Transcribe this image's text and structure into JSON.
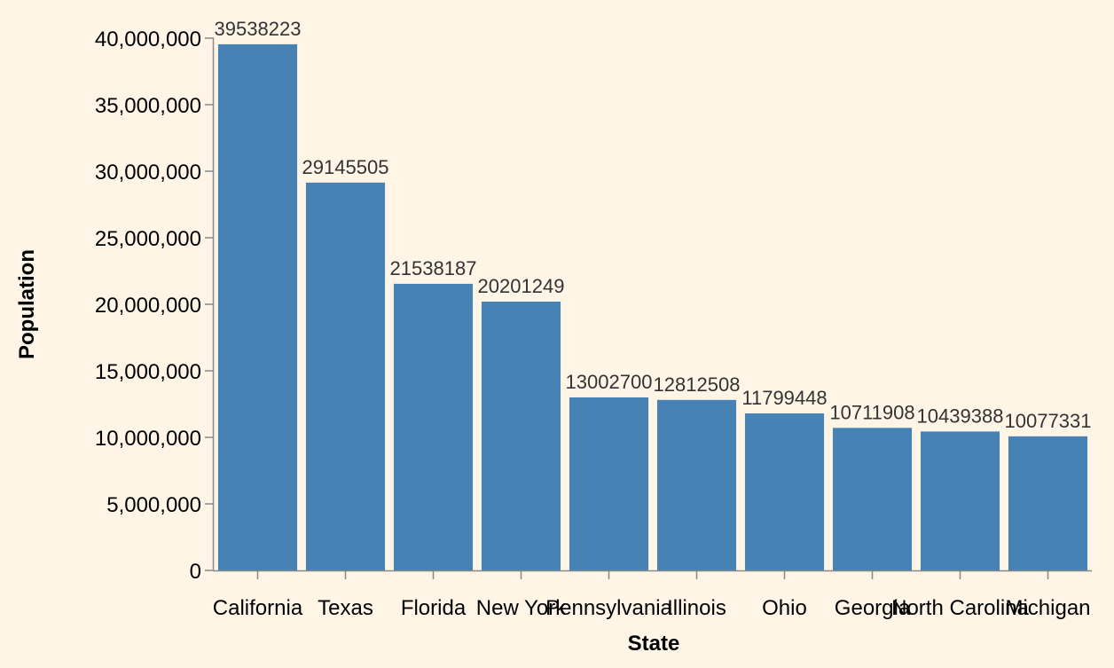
{
  "chart_data": {
    "type": "bar",
    "title": "",
    "xlabel": "State",
    "ylabel": "Population",
    "categories": [
      "California",
      "Texas",
      "Florida",
      "New York",
      "Pennsylvania",
      "Illinois",
      "Ohio",
      "Georgia",
      "North Carolina",
      "Michigan"
    ],
    "values": [
      39538223,
      29145505,
      21538187,
      20201249,
      13002700,
      12812508,
      11799448,
      10711908,
      10439388,
      10077331
    ],
    "ylim": [
      0,
      40000000
    ],
    "yticks": [
      0,
      5000000,
      10000000,
      15000000,
      20000000,
      25000000,
      30000000,
      35000000,
      40000000
    ],
    "ytick_labels": [
      "0",
      "5,000,000",
      "10,000,000",
      "15,000,000",
      "20,000,000",
      "25,000,000",
      "30,000,000",
      "35,000,000",
      "40,000,000"
    ],
    "grid": false,
    "bar_color": "#4682b4",
    "background": "#fef5e7"
  }
}
